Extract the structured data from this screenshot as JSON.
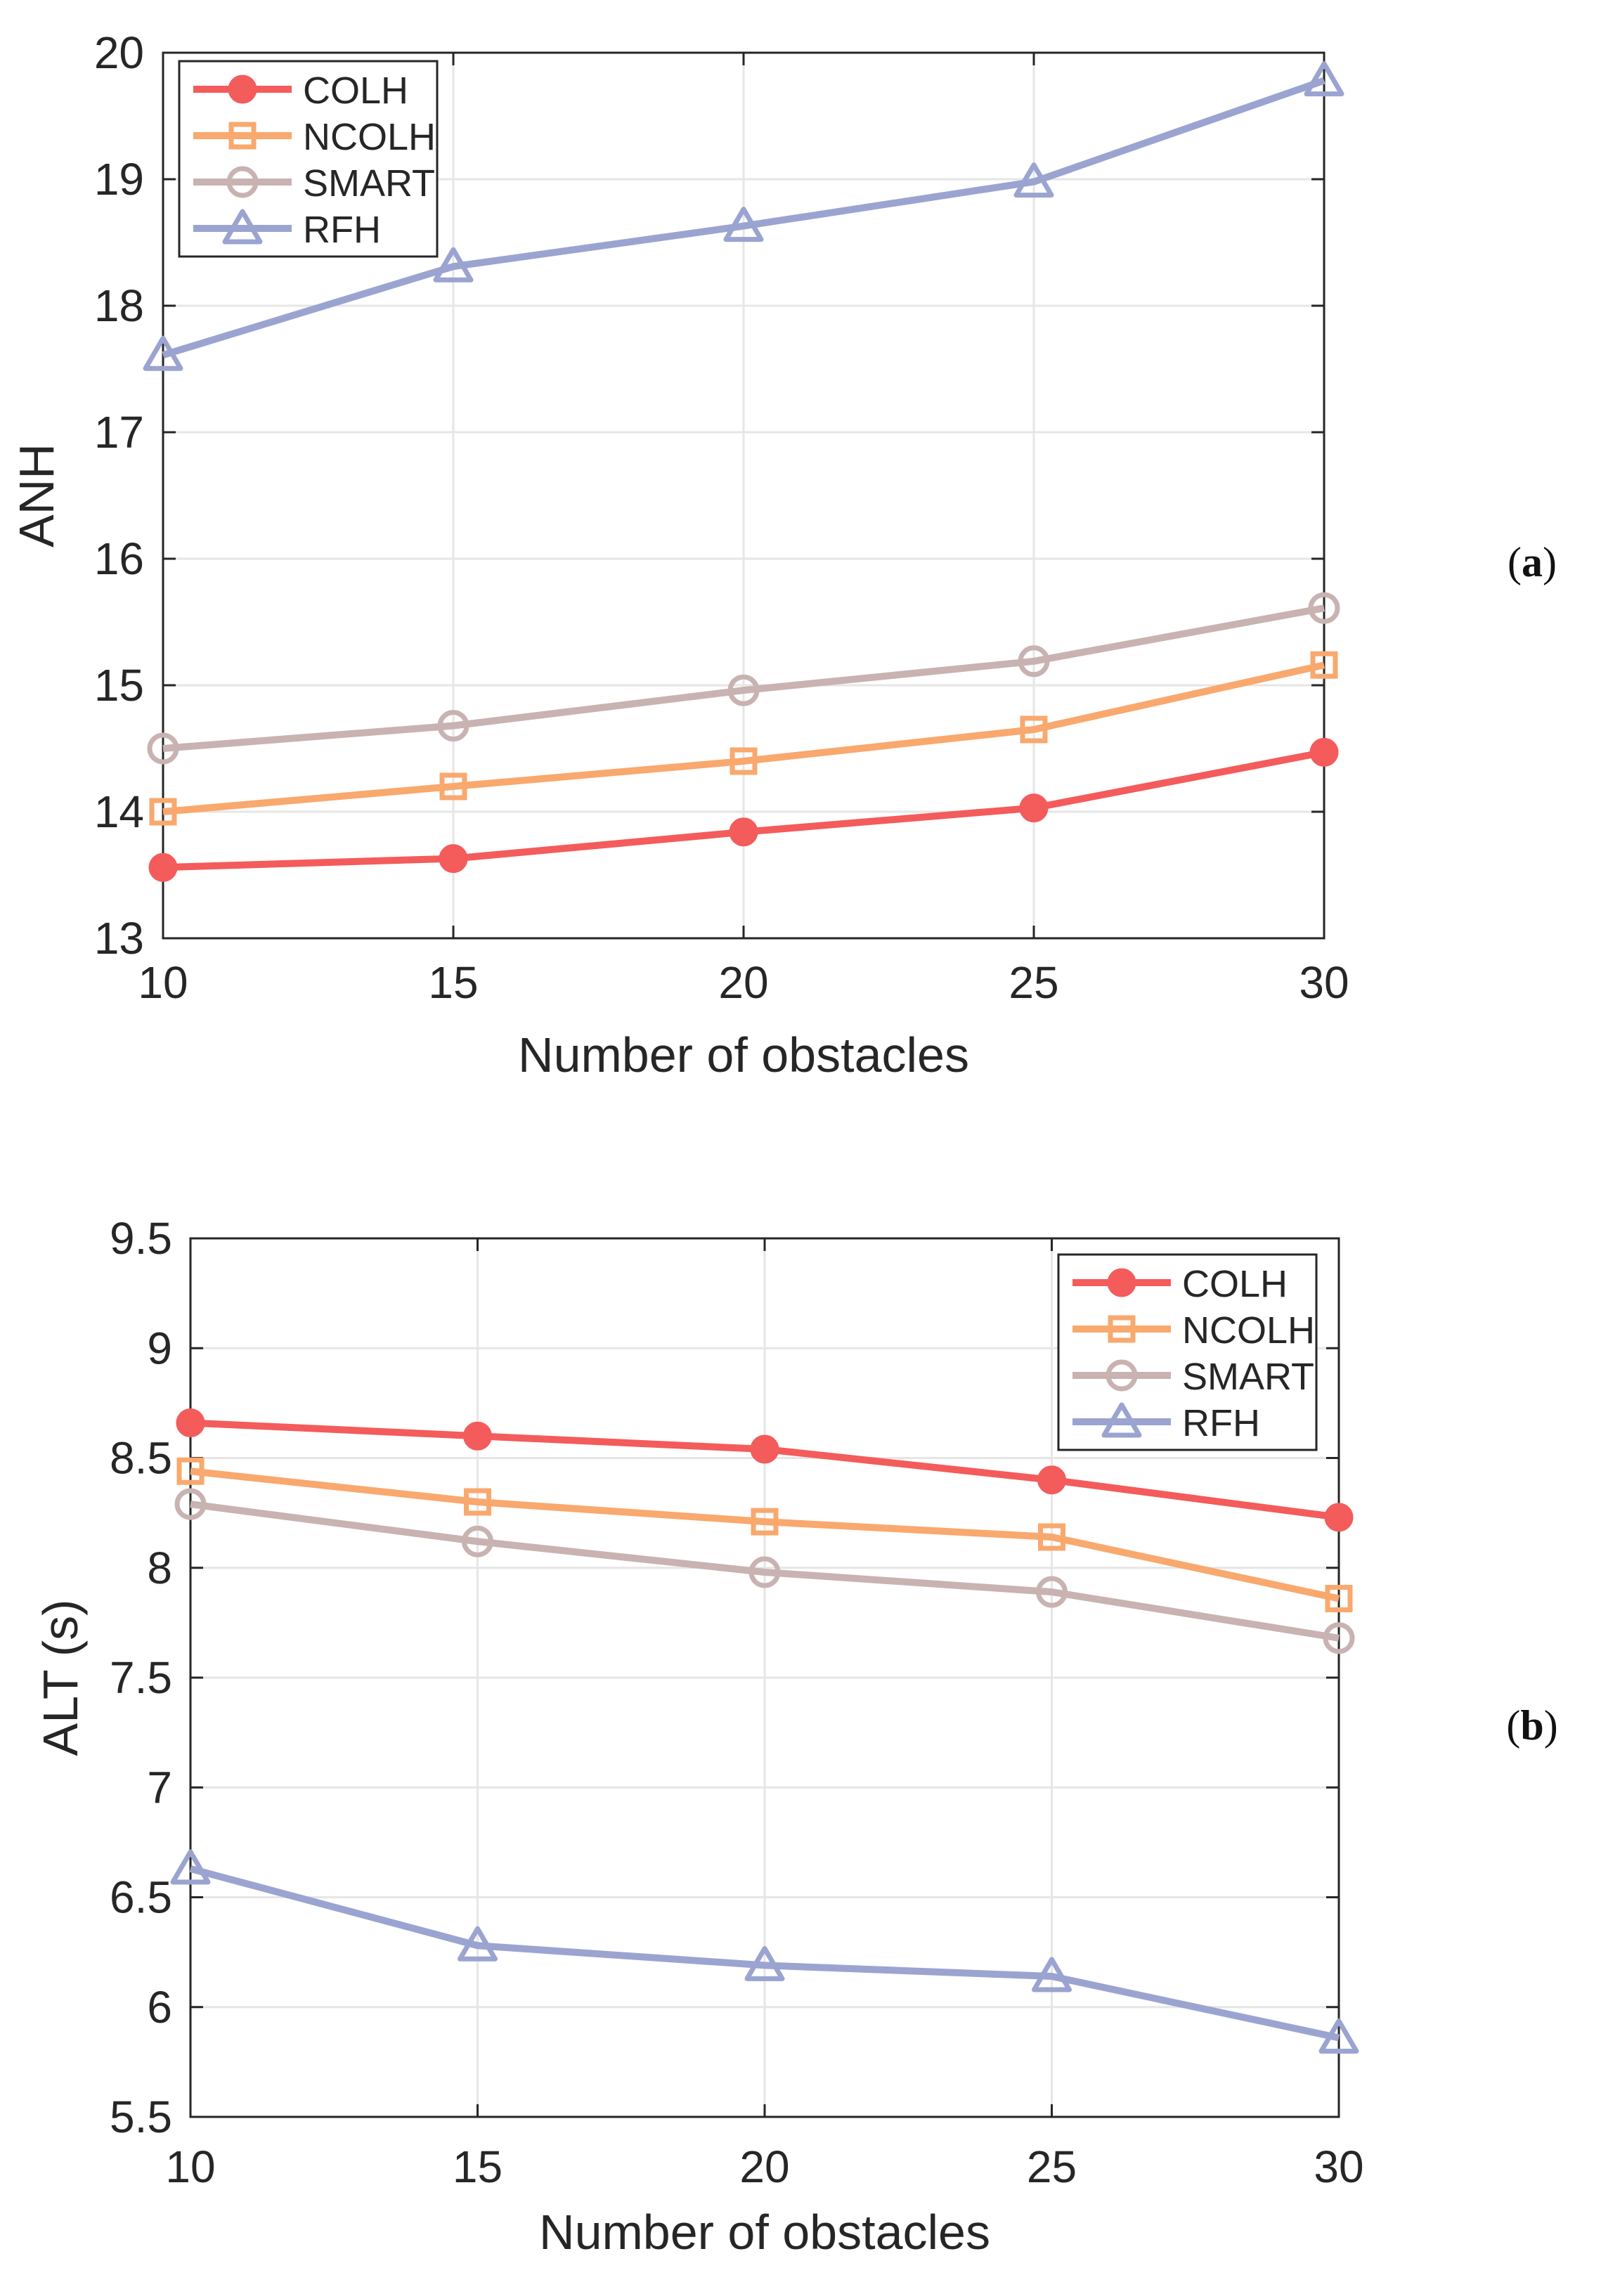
{
  "chart_data": [
    {
      "type": "line",
      "panel_label": "a",
      "title": "",
      "xlabel": "Number of obstacles",
      "ylabel": "ANH",
      "x": [
        10,
        15,
        20,
        25,
        30
      ],
      "xlim": [
        10,
        30
      ],
      "ylim": [
        13,
        20
      ],
      "xticks": [
        "10",
        "15",
        "20",
        "25",
        "30"
      ],
      "yticks": [
        "13",
        "14",
        "15",
        "16",
        "17",
        "18",
        "19",
        "20"
      ],
      "grid": true,
      "legend_position": "top-left",
      "series": [
        {
          "name": "COLH",
          "marker": "filled-circle",
          "color": "#f45b5b",
          "values": [
            13.56,
            13.63,
            13.84,
            14.03,
            14.47
          ]
        },
        {
          "name": "NCOLH",
          "marker": "square",
          "color": "#f9a86e",
          "values": [
            14.0,
            14.2,
            14.4,
            14.65,
            15.16
          ]
        },
        {
          "name": "SMART",
          "marker": "circle",
          "color": "#c9b2b2",
          "values": [
            14.5,
            14.68,
            14.96,
            15.19,
            15.61
          ]
        },
        {
          "name": "RFH",
          "marker": "triangle",
          "color": "#9ba4d0",
          "values": [
            17.61,
            18.31,
            18.63,
            18.98,
            19.78
          ]
        }
      ]
    },
    {
      "type": "line",
      "panel_label": "b",
      "title": "",
      "xlabel": "Number of obstacles",
      "ylabel": "ALT (s)",
      "x": [
        10,
        15,
        20,
        25,
        30
      ],
      "xlim": [
        10,
        30
      ],
      "ylim": [
        5.5,
        9.5
      ],
      "xticks": [
        "10",
        "15",
        "20",
        "25",
        "30"
      ],
      "yticks": [
        "5.5",
        "6",
        "6.5",
        "7",
        "7.5",
        "8",
        "8.5",
        "9",
        "9.5"
      ],
      "grid": true,
      "legend_position": "top-right",
      "series": [
        {
          "name": "COLH",
          "marker": "filled-circle",
          "color": "#f45b5b",
          "values": [
            8.66,
            8.6,
            8.54,
            8.4,
            8.23
          ]
        },
        {
          "name": "NCOLH",
          "marker": "square",
          "color": "#f9a86e",
          "values": [
            8.44,
            8.3,
            8.21,
            8.14,
            7.86
          ]
        },
        {
          "name": "SMART",
          "marker": "circle",
          "color": "#c9b2b2",
          "values": [
            8.29,
            8.12,
            7.98,
            7.89,
            7.68
          ]
        },
        {
          "name": "RFH",
          "marker": "triangle",
          "color": "#9ba4d0",
          "values": [
            6.63,
            6.28,
            6.19,
            6.14,
            5.86
          ]
        }
      ]
    }
  ]
}
